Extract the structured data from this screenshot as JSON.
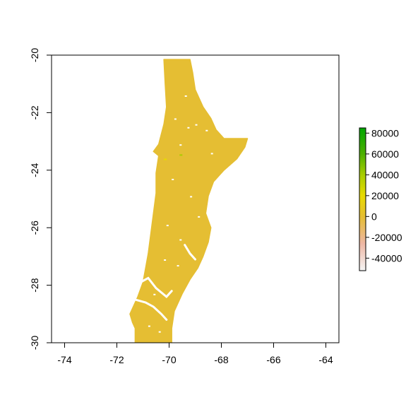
{
  "chart_data": {
    "type": "heatmap",
    "title": "",
    "xlabel": "",
    "ylabel": "",
    "xlim": [
      -74.5,
      -63.5
    ],
    "ylim": [
      -30,
      -20
    ],
    "x_ticks": [
      -74,
      -72,
      -70,
      -68,
      -66,
      -64
    ],
    "y_ticks": [
      -20,
      -22,
      -24,
      -26,
      -28,
      -30
    ],
    "x_tick_labels": [
      "-74",
      "-72",
      "-70",
      "-68",
      "-66",
      "-64"
    ],
    "y_tick_labels": [
      "-20",
      "-22",
      "-24",
      "-26",
      "-28",
      "-30"
    ],
    "fill_value_dominant": 0,
    "fill_color_dominant": "#E5BE33",
    "region_outline": [
      [
        -70.2,
        -20.15
      ],
      [
        -69.2,
        -20.15
      ],
      [
        -69.1,
        -20.6
      ],
      [
        -69.0,
        -21.2
      ],
      [
        -68.7,
        -21.8
      ],
      [
        -68.4,
        -22.2
      ],
      [
        -68.2,
        -22.6
      ],
      [
        -67.9,
        -22.9
      ],
      [
        -67.0,
        -22.9
      ],
      [
        -67.1,
        -23.2
      ],
      [
        -67.4,
        -23.6
      ],
      [
        -67.9,
        -24.0
      ],
      [
        -68.3,
        -24.4
      ],
      [
        -68.5,
        -24.9
      ],
      [
        -68.6,
        -25.5
      ],
      [
        -68.4,
        -26.0
      ],
      [
        -68.5,
        -26.5
      ],
      [
        -68.7,
        -27.0
      ],
      [
        -68.9,
        -27.4
      ],
      [
        -69.2,
        -27.8
      ],
      [
        -69.5,
        -28.3
      ],
      [
        -69.8,
        -28.9
      ],
      [
        -69.9,
        -29.5
      ],
      [
        -69.9,
        -30.0
      ],
      [
        -71.3,
        -30.0
      ],
      [
        -71.3,
        -29.5
      ],
      [
        -71.4,
        -29.3
      ],
      [
        -71.5,
        -29.0
      ],
      [
        -71.2,
        -28.4
      ],
      [
        -71.0,
        -27.9
      ],
      [
        -70.9,
        -27.4
      ],
      [
        -70.8,
        -26.9
      ],
      [
        -70.7,
        -26.2
      ],
      [
        -70.6,
        -25.5
      ],
      [
        -70.5,
        -24.8
      ],
      [
        -70.5,
        -24.1
      ],
      [
        -70.4,
        -23.5
      ],
      [
        -70.6,
        -23.35
      ],
      [
        -70.4,
        -23.1
      ],
      [
        -70.2,
        -22.4
      ],
      [
        -70.1,
        -21.8
      ],
      [
        -70.15,
        -21.0
      ]
    ],
    "gaps": [
      {
        "line": [
          [
            -71.1,
            -27.9
          ],
          [
            -70.8,
            -27.75
          ],
          [
            -70.5,
            -28.1
          ],
          [
            -70.1,
            -28.4
          ],
          [
            -69.9,
            -28.2
          ]
        ]
      },
      {
        "line": [
          [
            -71.3,
            -28.5
          ],
          [
            -70.9,
            -28.6
          ],
          [
            -70.6,
            -28.75
          ],
          [
            -70.3,
            -29.0
          ],
          [
            -70.1,
            -29.2
          ]
        ]
      },
      {
        "line": [
          [
            -69.4,
            -26.6
          ],
          [
            -69.2,
            -26.9
          ],
          [
            -69.0,
            -27.1
          ]
        ]
      }
    ],
    "accent_points": [
      {
        "x": -69.6,
        "y": -23.45,
        "value": 40000
      },
      {
        "x": -70.2,
        "y": -23.6,
        "value": 20000
      }
    ],
    "colorbar": {
      "min": -52000,
      "max": 85000,
      "ticks": [
        80000,
        60000,
        40000,
        20000,
        0,
        -20000,
        -40000
      ],
      "tick_labels": [
        "80000",
        "60000",
        "40000",
        "20000",
        "0",
        "-20000",
        "-40000"
      ],
      "stops": [
        {
          "value": -52000,
          "color": "#F5F5F5"
        },
        {
          "value": -26000,
          "color": "#EEB7A4"
        },
        {
          "value": 0,
          "color": "#E5BE33"
        },
        {
          "value": 20000,
          "color": "#E8DA00"
        },
        {
          "value": 40000,
          "color": "#A8CD00"
        },
        {
          "value": 60000,
          "color": "#4DB000"
        },
        {
          "value": 85000,
          "color": "#00A600"
        }
      ]
    }
  }
}
